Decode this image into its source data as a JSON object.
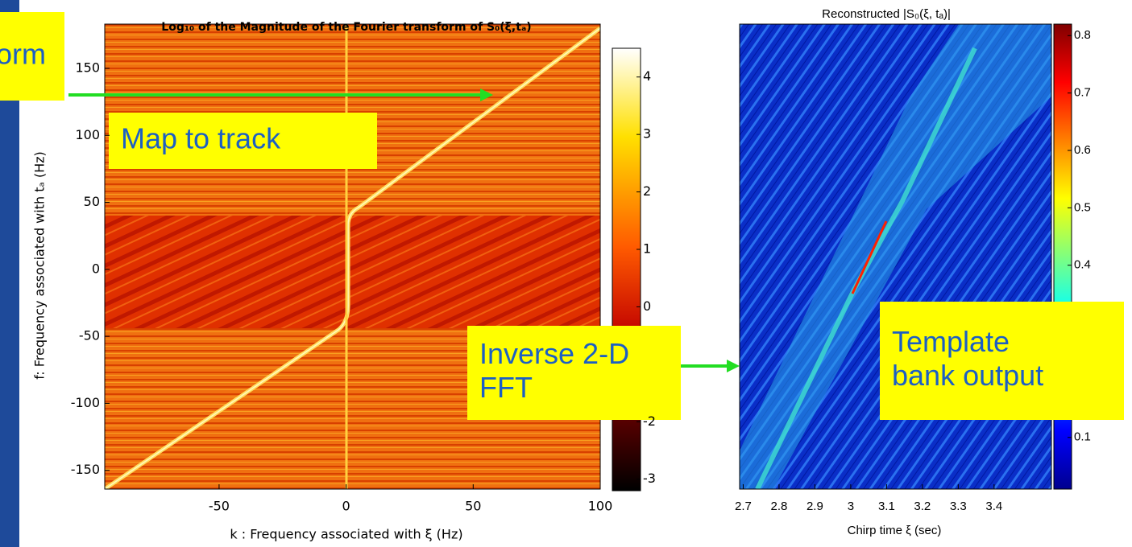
{
  "chart_data": [
    {
      "type": "heatmap",
      "title": "Log₁₀ of the Magnitude of the Fourier transform of S₀(ξ,tₐ)",
      "xlabel": "k : Frequency associated with ξ (Hz)",
      "ylabel": "f: Frequency associated with tₐ (Hz)",
      "xlim": [
        -95,
        100
      ],
      "ylim": [
        -164,
        183
      ],
      "xticks": [
        -50,
        0,
        50,
        100
      ],
      "yticks": [
        -150,
        -100,
        -50,
        0,
        50,
        100,
        150
      ],
      "colorbar": {
        "lim": [
          -3.2,
          4.5
        ],
        "ticks": [
          -3,
          -2,
          0,
          1,
          2,
          3,
          4
        ]
      }
    },
    {
      "type": "heatmap",
      "title": "Reconstructed |S₀(ξ, tₐ)|",
      "xlabel": "Chirp time ξ (sec)",
      "xlim": [
        2.69,
        3.56
      ],
      "xticks": [
        2.7,
        2.8,
        2.9,
        3,
        3.1,
        3.2,
        3.3,
        3.4
      ],
      "colorbar": {
        "lim": [
          0.01,
          0.82
        ],
        "ticks": [
          0.1,
          0.4,
          0.5,
          0.6,
          0.7,
          0.8
        ]
      }
    }
  ],
  "callouts": [
    [
      "orm"
    ],
    [
      "Map to track"
    ],
    [
      "Inverse 2-D",
      "FFT"
    ],
    [
      "Template",
      "bank output"
    ]
  ]
}
